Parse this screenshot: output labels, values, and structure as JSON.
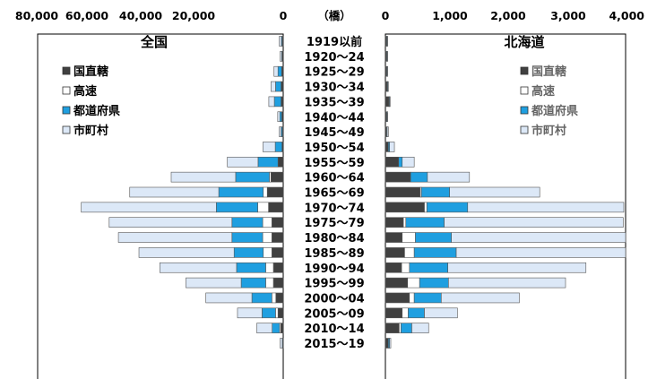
{
  "chart_data": {
    "type": "bar",
    "orientation": "horizontal-butterfly",
    "unit_label": "（橋）",
    "categories": [
      "1919以前",
      "1920～24",
      "1925～29",
      "1930～34",
      "1935～39",
      "1940～44",
      "1945～49",
      "1950～54",
      "1955～59",
      "1960～64",
      "1965～69",
      "1970～74",
      "1975～79",
      "1980～84",
      "1985～89",
      "1990～94",
      "1995～99",
      "2000～04",
      "2005～09",
      "2010～14",
      "2015～19"
    ],
    "series_names": [
      "国直轄",
      "高速",
      "都道府県",
      "市町村"
    ],
    "colors": [
      "#404040",
      "#ffffff",
      "#1f9fe0",
      "#dce8f7"
    ],
    "panels": [
      {
        "title": "全国",
        "side": "left",
        "ticks": [
          "80,000",
          "60,000",
          "40,000",
          "20,000",
          "0"
        ],
        "xlim": [
          0,
          80000
        ],
        "legend": [
          "国直轄",
          "高速",
          "都道府県",
          "市町村"
        ],
        "legend_color": "#000000",
        "values": [
          [
            300,
            0,
            300,
            700
          ],
          [
            300,
            0,
            200,
            500
          ],
          [
            500,
            0,
            1200,
            1300
          ],
          [
            700,
            0,
            1800,
            1500
          ],
          [
            700,
            0,
            2200,
            1800
          ],
          [
            500,
            0,
            600,
            700
          ],
          [
            300,
            0,
            400,
            600
          ],
          [
            400,
            0,
            2200,
            4000
          ],
          [
            1700,
            0,
            6500,
            10000
          ],
          [
            4000,
            500,
            11000,
            21000
          ],
          [
            5200,
            1300,
            14500,
            29000
          ],
          [
            4800,
            3500,
            13500,
            44000
          ],
          [
            3700,
            3000,
            10000,
            40000
          ],
          [
            3700,
            3000,
            10000,
            37000
          ],
          [
            3700,
            2800,
            9500,
            31000
          ],
          [
            3200,
            2500,
            9500,
            25000
          ],
          [
            3200,
            2500,
            8000,
            18000
          ],
          [
            2400,
            1300,
            6500,
            15000
          ],
          [
            1700,
            800,
            4400,
            8000
          ],
          [
            800,
            400,
            2400,
            5000
          ],
          [
            100,
            0,
            200,
            700
          ]
        ]
      },
      {
        "title": "北海道",
        "side": "right",
        "ticks": [
          "0",
          "1,000",
          "2,000",
          "3,000",
          "4,000"
        ],
        "xlim": [
          0,
          4000
        ],
        "legend": [
          "国直轄",
          "高速",
          "都道府県",
          "市町村"
        ],
        "legend_color": "#666666",
        "values": [
          [
            20,
            0,
            10,
            10
          ],
          [
            20,
            0,
            10,
            10
          ],
          [
            20,
            0,
            10,
            10
          ],
          [
            30,
            0,
            10,
            10
          ],
          [
            60,
            0,
            10,
            10
          ],
          [
            20,
            0,
            10,
            10
          ],
          [
            20,
            0,
            10,
            20
          ],
          [
            50,
            0,
            20,
            80
          ],
          [
            220,
            0,
            60,
            200
          ],
          [
            420,
            0,
            280,
            700
          ],
          [
            580,
            20,
            470,
            1500
          ],
          [
            650,
            40,
            680,
            2600
          ],
          [
            300,
            40,
            640,
            2980
          ],
          [
            280,
            220,
            600,
            3500
          ],
          [
            320,
            160,
            700,
            3500
          ],
          [
            270,
            130,
            640,
            2300
          ],
          [
            370,
            200,
            480,
            1950
          ],
          [
            400,
            80,
            450,
            1300
          ],
          [
            280,
            100,
            270,
            550
          ],
          [
            230,
            30,
            180,
            280
          ],
          [
            50,
            0,
            20,
            20
          ]
        ]
      }
    ]
  }
}
